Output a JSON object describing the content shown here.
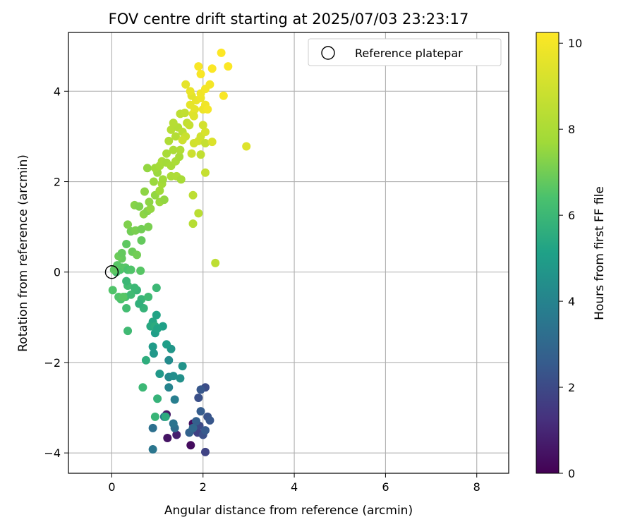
{
  "chart_data": {
    "type": "scatter",
    "title": "FOV centre drift starting at 2025/07/03 23:23:17",
    "xlabel": "Angular distance from reference (arcmin)",
    "ylabel": "Rotation from reference (arcmin)",
    "xlim": [
      -0.95,
      8.7
    ],
    "ylim": [
      -4.45,
      5.3
    ],
    "xticks": [
      0,
      2,
      4,
      6,
      8
    ],
    "yticks": [
      -4,
      -2,
      0,
      2,
      4
    ],
    "ytick_labels": [
      "−4",
      "−2",
      "0",
      "2",
      "4"
    ],
    "grid": true,
    "legend": {
      "position": "top-right",
      "entries": [
        {
          "label": "Reference platepar",
          "marker": "open-circle"
        }
      ]
    },
    "reference_point": {
      "x": 0,
      "y": 0
    },
    "colorbar": {
      "label": "Hours from first FF file",
      "range": [
        0,
        10.25
      ],
      "ticks": [
        0,
        2,
        4,
        6,
        8,
        10
      ],
      "colormap": "viridis"
    },
    "points": [
      [
        1.73,
        -3.83,
        0.3
      ],
      [
        1.22,
        -3.67,
        0.5
      ],
      [
        1.42,
        -3.6,
        0.8
      ],
      [
        1.78,
        -3.35,
        0.4
      ],
      [
        1.2,
        -3.15,
        0.6
      ],
      [
        2.05,
        -3.98,
        1.8
      ],
      [
        1.88,
        -3.55,
        1.7
      ],
      [
        1.92,
        -3.4,
        2.0
      ],
      [
        2.0,
        -3.6,
        2.2
      ],
      [
        2.1,
        -3.2,
        2.3
      ],
      [
        2.15,
        -3.28,
        2.4
      ],
      [
        1.95,
        -3.08,
        2.6
      ],
      [
        1.85,
        -3.3,
        2.7
      ],
      [
        2.05,
        -3.5,
        2.5
      ],
      [
        1.7,
        -3.55,
        2.8
      ],
      [
        1.9,
        -2.78,
        2.2
      ],
      [
        2.05,
        -2.55,
        2.1
      ],
      [
        1.95,
        -2.6,
        2.4
      ],
      [
        1.78,
        -3.45,
        3.0
      ],
      [
        1.38,
        -3.45,
        3.2
      ],
      [
        1.35,
        -3.35,
        3.4
      ],
      [
        1.15,
        -3.2,
        3.6
      ],
      [
        0.9,
        -3.45,
        3.3
      ],
      [
        0.9,
        -3.92,
        3.5
      ],
      [
        1.38,
        -2.82,
        3.8
      ],
      [
        1.25,
        -2.55,
        4.0
      ],
      [
        1.25,
        -2.32,
        4.2
      ],
      [
        1.35,
        -2.3,
        4.4
      ],
      [
        1.5,
        -2.35,
        4.5
      ],
      [
        1.55,
        -2.08,
        4.6
      ],
      [
        1.25,
        -1.95,
        4.3
      ],
      [
        1.3,
        -1.7,
        4.7
      ],
      [
        1.05,
        -2.25,
        4.8
      ],
      [
        1.2,
        -1.6,
        5.0
      ],
      [
        1.12,
        -1.2,
        5.1
      ],
      [
        0.95,
        -1.35,
        5.0
      ],
      [
        0.98,
        -0.95,
        5.2
      ],
      [
        0.9,
        -1.1,
        5.3
      ],
      [
        0.85,
        -1.2,
        5.4
      ],
      [
        0.95,
        -1.2,
        5.5
      ],
      [
        1.0,
        -1.25,
        5.2
      ],
      [
        0.9,
        -1.65,
        4.9
      ],
      [
        0.92,
        -1.8,
        4.8
      ],
      [
        0.75,
        -1.95,
        5.6
      ],
      [
        1.0,
        -2.8,
        5.8
      ],
      [
        0.95,
        -3.2,
        5.9
      ],
      [
        1.18,
        -3.2,
        5.5
      ],
      [
        0.68,
        -2.55,
        6.0
      ],
      [
        0.7,
        -0.8,
        5.8
      ],
      [
        0.65,
        -0.6,
        5.9
      ],
      [
        0.6,
        -0.7,
        5.7
      ],
      [
        0.8,
        -0.55,
        6.1
      ],
      [
        0.98,
        -0.35,
        6.0
      ],
      [
        0.55,
        -0.4,
        5.9
      ],
      [
        0.35,
        -0.3,
        6.2
      ],
      [
        0.32,
        -0.2,
        6.0
      ],
      [
        0.3,
        -0.55,
        6.3
      ],
      [
        0.42,
        -0.5,
        6.1
      ],
      [
        0.5,
        -0.35,
        6.0
      ],
      [
        0.32,
        -0.8,
        6.2
      ],
      [
        0.35,
        -1.3,
        6.1
      ],
      [
        0.2,
        -0.6,
        6.4
      ],
      [
        0.15,
        -0.55,
        6.5
      ],
      [
        0.25,
        -0.55,
        6.6
      ],
      [
        0.02,
        -0.4,
        6.5
      ],
      [
        0.1,
        0.0,
        6.3
      ],
      [
        0.18,
        0.05,
        6.4
      ],
      [
        0.22,
        0.1,
        6.5
      ],
      [
        0.3,
        0.1,
        6.6
      ],
      [
        0.35,
        0.05,
        6.4
      ],
      [
        0.12,
        0.15,
        6.6
      ],
      [
        0.05,
        0.05,
        6.7
      ],
      [
        0.42,
        0.05,
        6.5
      ],
      [
        0.63,
        0.03,
        6.6
      ],
      [
        0.22,
        0.3,
        6.8
      ],
      [
        0.15,
        0.35,
        6.9
      ],
      [
        0.22,
        0.42,
        6.8
      ],
      [
        0.32,
        0.62,
        6.7
      ],
      [
        0.45,
        0.45,
        6.9
      ],
      [
        0.55,
        0.38,
        7.0
      ],
      [
        0.65,
        0.7,
        6.8
      ],
      [
        0.42,
        0.9,
        7.0
      ],
      [
        0.52,
        0.92,
        7.1
      ],
      [
        0.65,
        0.95,
        7.0
      ],
      [
        0.35,
        1.05,
        7.2
      ],
      [
        0.8,
        1.0,
        7.1
      ],
      [
        0.5,
        1.48,
        7.3
      ],
      [
        0.6,
        1.45,
        7.2
      ],
      [
        0.7,
        1.28,
        7.4
      ],
      [
        0.78,
        1.35,
        7.3
      ],
      [
        0.85,
        1.4,
        7.5
      ],
      [
        0.82,
        1.55,
        7.4
      ],
      [
        0.95,
        1.7,
        7.5
      ],
      [
        1.05,
        1.55,
        7.6
      ],
      [
        1.15,
        1.6,
        7.5
      ],
      [
        0.72,
        1.78,
        7.4
      ],
      [
        0.92,
        2.0,
        7.6
      ],
      [
        1.05,
        1.8,
        7.7
      ],
      [
        1.1,
        1.95,
        7.8
      ],
      [
        1.12,
        2.05,
        7.7
      ],
      [
        1.0,
        2.2,
        7.6
      ],
      [
        0.78,
        2.3,
        7.5
      ],
      [
        0.95,
        2.3,
        7.7
      ],
      [
        1.05,
        2.35,
        7.8
      ],
      [
        1.1,
        2.45,
        7.9
      ],
      [
        1.2,
        2.42,
        7.8
      ],
      [
        1.3,
        2.35,
        7.9
      ],
      [
        1.4,
        2.45,
        8.0
      ],
      [
        1.48,
        2.55,
        7.9
      ],
      [
        1.35,
        2.7,
        8.0
      ],
      [
        1.5,
        2.7,
        8.1
      ],
      [
        1.3,
        2.12,
        8.0
      ],
      [
        1.42,
        2.12,
        8.1
      ],
      [
        1.52,
        2.05,
        7.9
      ],
      [
        1.2,
        2.62,
        7.9
      ],
      [
        1.25,
        2.9,
        8.1
      ],
      [
        1.4,
        3.0,
        8.2
      ],
      [
        1.3,
        3.15,
        8.3
      ],
      [
        1.45,
        3.2,
        8.2
      ],
      [
        1.35,
        3.3,
        8.3
      ],
      [
        1.55,
        3.1,
        8.4
      ],
      [
        1.5,
        3.5,
        8.5
      ],
      [
        1.65,
        3.3,
        8.6
      ],
      [
        1.7,
        3.25,
        8.7
      ],
      [
        1.6,
        3.52,
        8.6
      ],
      [
        1.62,
        3.0,
        8.8
      ],
      [
        1.55,
        2.92,
        8.9
      ],
      [
        1.75,
        2.62,
        8.9
      ],
      [
        1.8,
        2.85,
        9.0
      ],
      [
        1.9,
        2.9,
        9.1
      ],
      [
        1.95,
        3.0,
        9.0
      ],
      [
        2.05,
        3.1,
        9.2
      ],
      [
        2.0,
        3.25,
        9.1
      ],
      [
        1.95,
        2.6,
        8.6
      ],
      [
        2.05,
        2.85,
        8.7
      ],
      [
        2.2,
        2.88,
        9.3
      ],
      [
        2.05,
        2.2,
        8.7
      ],
      [
        1.78,
        1.7,
        8.5
      ],
      [
        1.9,
        1.3,
        8.4
      ],
      [
        1.78,
        1.07,
        8.3
      ],
      [
        2.27,
        0.2,
        8.5
      ],
      [
        2.95,
        2.78,
        9.4
      ],
      [
        1.78,
        3.5,
        9.5
      ],
      [
        1.72,
        3.7,
        9.6
      ],
      [
        1.82,
        3.6,
        9.6
      ],
      [
        1.85,
        3.8,
        9.7
      ],
      [
        1.75,
        3.9,
        9.5
      ],
      [
        1.62,
        4.15,
        9.6
      ],
      [
        1.72,
        4.0,
        9.7
      ],
      [
        1.95,
        3.85,
        9.8
      ],
      [
        2.0,
        3.6,
        9.8
      ],
      [
        2.05,
        3.7,
        9.9
      ],
      [
        1.95,
        3.95,
        9.9
      ],
      [
        2.05,
        4.05,
        10.0
      ],
      [
        2.1,
        3.6,
        10.0
      ],
      [
        1.9,
        4.55,
        10.1
      ],
      [
        2.15,
        4.15,
        10.0
      ],
      [
        1.95,
        4.38,
        10.1
      ],
      [
        2.2,
        4.5,
        10.2
      ],
      [
        2.4,
        4.85,
        10.3
      ],
      [
        2.55,
        4.55,
        10.2
      ],
      [
        2.45,
        3.9,
        10.1
      ],
      [
        1.8,
        3.45,
        9.4
      ]
    ]
  }
}
